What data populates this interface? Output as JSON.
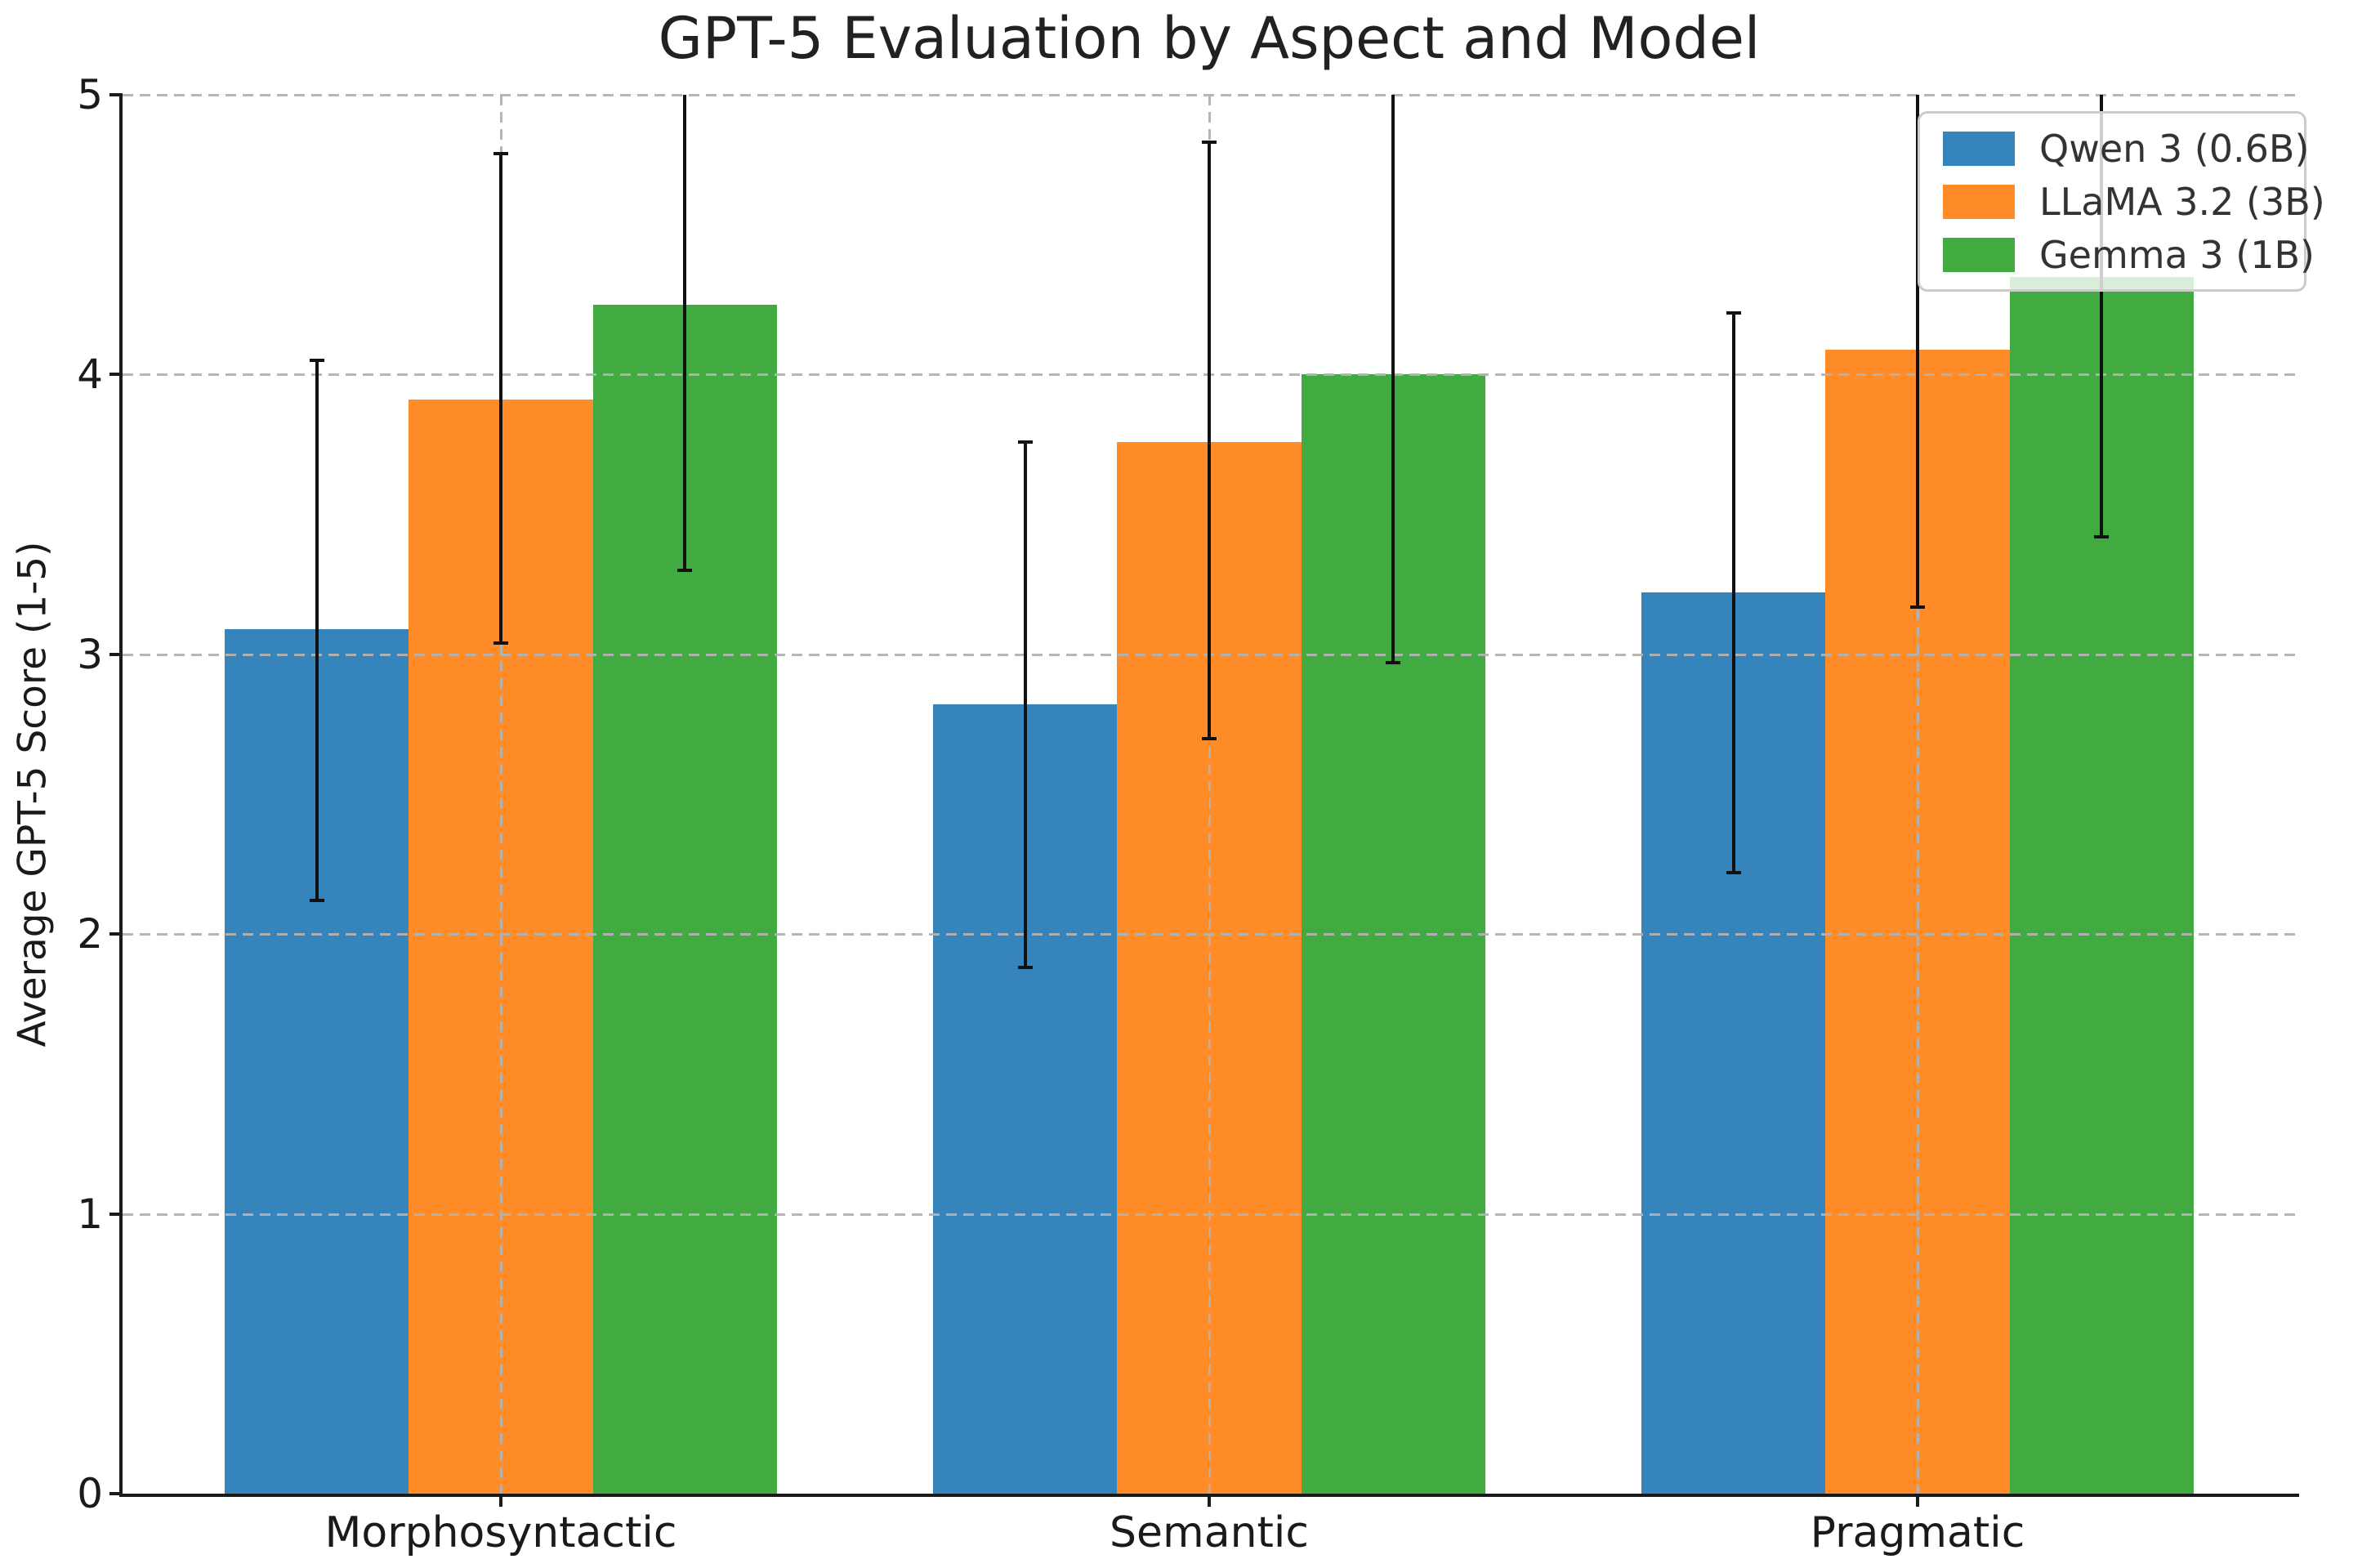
{
  "chart_data": {
    "type": "bar",
    "title": "GPT-5 Evaluation by Aspect and Model",
    "ylabel": "Average GPT-5 Score (1-5)",
    "xlabel": "",
    "categories": [
      "Morphosyntactic",
      "Semantic",
      "Pragmatic"
    ],
    "series": [
      {
        "name": "Qwen 3 (0.6B)",
        "color": "#3584bb",
        "values": [
          3.09,
          2.82,
          3.22
        ],
        "err_low": [
          2.12,
          1.88,
          2.22
        ],
        "err_high": [
          4.05,
          3.76,
          4.22
        ]
      },
      {
        "name": "LLaMA 3.2 (3B)",
        "color": "#ff8c26",
        "values": [
          3.91,
          3.76,
          4.09
        ],
        "err_low": [
          3.04,
          2.7,
          3.17
        ],
        "err_high": [
          4.79,
          4.83,
          5.01
        ]
      },
      {
        "name": "Gemma 3 (1B)",
        "color": "#41aa41",
        "values": [
          4.25,
          4.0,
          4.35
        ],
        "err_low": [
          3.3,
          2.97,
          3.42
        ],
        "err_high": [
          5.2,
          5.03,
          5.28
        ]
      }
    ],
    "ylim": [
      0,
      5
    ],
    "yticks": [
      "0",
      "1",
      "2",
      "3",
      "4",
      "5"
    ],
    "grid": true,
    "grid_axes": "both",
    "grid_style": "dashed",
    "legend_position": "upper right",
    "bar_group_width": 0.78,
    "errorbar_color": "#111111"
  }
}
